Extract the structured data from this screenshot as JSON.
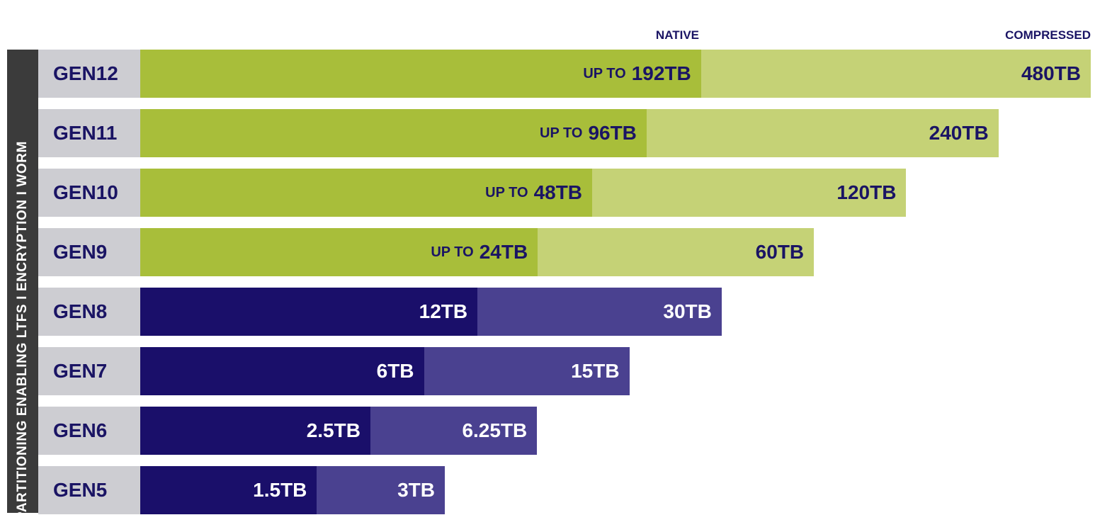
{
  "chart_data": {
    "type": "bar",
    "orientation": "horizontal",
    "stacking": "overlay",
    "headers": {
      "native": "NATIVE",
      "compressed": "COMPRESSED"
    },
    "side_label": "PARTITIONING ENABLING LTFS  I  ENCRYPTION  I  WORM",
    "categories": [
      "GEN12",
      "GEN11",
      "GEN10",
      "GEN9",
      "GEN8",
      "GEN7",
      "GEN6",
      "GEN5"
    ],
    "series": [
      {
        "name": "NATIVE",
        "values": [
          192,
          96,
          48,
          24,
          12,
          6,
          2.5,
          1.5
        ]
      },
      {
        "name": "COMPRESSED",
        "values": [
          480,
          240,
          120,
          60,
          30,
          15,
          6.25,
          3
        ]
      }
    ],
    "native_labels": [
      "192TB",
      "96TB",
      "48TB",
      "24TB",
      "12TB",
      "6TB",
      "2.5TB",
      "1.5TB"
    ],
    "native_prefix": [
      "UP TO",
      "UP TO",
      "UP TO",
      "UP TO",
      "",
      "",
      "",
      ""
    ],
    "compressed_labels": [
      "480TB",
      "240TB",
      "120TB",
      "60TB",
      "30TB",
      "15TB",
      "6.25TB",
      "3TB"
    ],
    "colors": {
      "gen9_plus_native": "#a8be3a",
      "gen9_plus_compressed": "#c5d276",
      "gen8_minus_native": "#1a0f6a",
      "gen8_minus_compressed": "#4a4190",
      "label_dark": "#1a1464",
      "gen_cell": "#cdcdd2",
      "sidebar": "#3b3b3b"
    }
  }
}
